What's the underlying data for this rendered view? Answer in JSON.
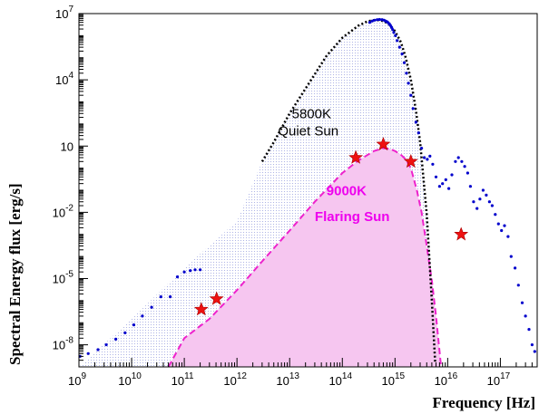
{
  "chart_data": {
    "type": "scatter",
    "title": "",
    "xlabel": "Frequency [Hz]",
    "ylabel": "Spectral Energy flux [erg/s]",
    "x_scale": "log",
    "y_scale": "log",
    "xlim": [
      1000000000.0,
      5e+17
    ],
    "ylim": [
      1e-09,
      10000000.0
    ],
    "grid": false,
    "legend": "none",
    "x_ticks": [
      {
        "base": "10",
        "exp": "9",
        "value": 1000000000.0
      },
      {
        "base": "10",
        "exp": "10",
        "value": 10000000000.0
      },
      {
        "base": "10",
        "exp": "11",
        "value": 100000000000.0
      },
      {
        "base": "10",
        "exp": "12",
        "value": 1000000000000.0
      },
      {
        "base": "10",
        "exp": "13",
        "value": 10000000000000.0
      },
      {
        "base": "10",
        "exp": "14",
        "value": 100000000000000.0
      },
      {
        "base": "10",
        "exp": "15",
        "value": 1000000000000000.0
      },
      {
        "base": "10",
        "exp": "16",
        "value": 1e+16
      },
      {
        "base": "10",
        "exp": "17",
        "value": 1e+17
      }
    ],
    "y_ticks": [
      {
        "base": "10",
        "exp": "-8",
        "value": 1e-08
      },
      {
        "base": "10",
        "exp": "-5",
        "value": 1e-05
      },
      {
        "base": "10",
        "exp": "-2",
        "value": 0.01
      },
      {
        "base": "10",
        "exp": "",
        "value": 10
      },
      {
        "base": "10",
        "exp": "4",
        "value": 10000.0
      },
      {
        "base": "10",
        "exp": "7",
        "value": 10000000.0
      }
    ],
    "annotations": [
      {
        "text": "5800K",
        "color": "#000000",
        "x": 11000000000000.0,
        "y": 180
      },
      {
        "text": "Quiet Sun",
        "color": "#000000",
        "x": 6000000000000.0,
        "y": 30
      },
      {
        "text": "9000K",
        "color": "#ee00ee",
        "x": 50000000000000.0,
        "y": 0.06
      },
      {
        "text": "Flaring Sun",
        "color": "#ee00ee",
        "x": 30000000000000.0,
        "y": 0.004
      }
    ],
    "series": [
      {
        "style": "dotted-line",
        "color": "#000000",
        "x": [
          3000000000000.0,
          5000000000000.0,
          10000000000000.0,
          20000000000000.0,
          50000000000000.0,
          100000000000000.0,
          200000000000000.0,
          300000000000000.0,
          400000000000000.0,
          500000000000000.0,
          600000000000000.0,
          700000000000000.0,
          800000000000000.0,
          1000000000000000.0,
          1300000000000000.0,
          1600000000000000.0,
          2000000000000000.0,
          2500000000000000.0,
          3000000000000000.0,
          4000000000000000.0,
          5000000000000000.0,
          5800000000000000.0
        ],
        "y": [
          2,
          15,
          300,
          4000,
          120000.0,
          800000.0,
          2800000.0,
          4500000.0,
          5000000.0,
          5000000.0,
          4600000.0,
          3800000.0,
          3000000.0,
          1600000.0,
          500000.0,
          100000.0,
          10000.0,
          400.0,
          15,
          0.008,
          1e-06,
          1.5e-09
        ]
      },
      {
        "style": "dashed-filled",
        "color": "#ee22cc",
        "fill": "#f6c6f0",
        "x": [
          50000000000.0,
          100000000000.0,
          300000000000.0,
          1000000000000.0,
          3000000000000.0,
          10000000000000.0,
          30000000000000.0,
          100000000000000.0,
          200000000000000.0,
          400000000000000.0,
          600000000000000.0,
          800000000000000.0,
          1000000000000000.0,
          1300000000000000.0,
          1600000000000000.0,
          2000000000000000.0,
          2600000000000000.0,
          3200000000000000.0,
          4000000000000000.0,
          5000000000000000.0,
          6000000000000000.0,
          7000000000000000.0,
          7500000000000000.0
        ],
        "y": [
          1e-09,
          2e-08,
          1.5e-07,
          3e-06,
          6e-05,
          0.0015,
          0.03,
          0.6,
          2.2,
          6,
          8,
          7.5,
          6,
          4,
          2.5,
          1,
          0.1,
          0.01,
          0.0003,
          8e-06,
          2e-07,
          5e-09,
          1e-09
        ]
      },
      {
        "style": "dots",
        "color": "#0000cc",
        "x": [
          1050000000.0,
          1500000000.0,
          2300000000.0,
          3300000000.0,
          5000000000.0,
          7500000000.0,
          11000000000.0,
          16000000000.0,
          24000000000.0,
          36000000000.0,
          54000000000.0,
          74000000000.0,
          100000000000.0,
          130000000000.0,
          160000000000.0,
          200000000000.0,
          330000000000000.0,
          370000000000000.0,
          410000000000000.0,
          460000000000000.0,
          510000000000000.0,
          570000000000000.0,
          620000000000000.0,
          660000000000000.0,
          700000000000000.0,
          740000000000000.0,
          780000000000000.0,
          820000000000000.0,
          860000000000000.0,
          900000000000000.0,
          950000000000000.0,
          1020000000000000.0,
          1100000000000000.0,
          1220000000000000.0,
          1360000000000000.0,
          1500000000000000.0,
          1650000000000000.0,
          1800000000000000.0,
          2000000000000000.0,
          2200000000000000.0,
          2500000000000000.0,
          2800000000000000.0,
          3200000000000000.0,
          3600000000000000.0,
          4100000000000000.0,
          4600000000000000.0,
          5200000000000000.0,
          6000000000000000.0,
          7000000000000000.0,
          8000000000000000.0,
          9200000000000000.0,
          1.05e+16,
          1.2e+16,
          1.4e+16,
          1.6e+16,
          1.85e+16,
          2.1e+16,
          2.4e+16,
          2.7e+16,
          3.1e+16,
          3.6e+16,
          4.1e+16,
          4.7e+16,
          5.4e+16,
          6.2e+16,
          7e+16,
          8e+16,
          9.2e+16,
          1.05e+17,
          1.2e+17,
          1.4e+17,
          1.6e+17,
          1.9e+17,
          2.2e+17,
          2.6e+17,
          3e+17,
          3.5e+17,
          4e+17,
          4.5e+17
        ],
        "y": [
          3e-09,
          4e-09,
          6e-09,
          1e-08,
          1.8e-08,
          3.5e-08,
          8e-08,
          2e-07,
          5e-07,
          1.5e-06,
          1.5e-06,
          1.2e-05,
          2e-05,
          2.3e-05,
          2.5e-05,
          2.5e-05,
          4000000.0,
          4600000.0,
          5000000.0,
          5300000.0,
          5400000.0,
          5300000.0,
          5000000.0,
          4600000.0,
          4300000.0,
          3900000.0,
          3400000.0,
          2900000.0,
          2400000.0,
          1900000.0,
          1400000.0,
          1000000.0,
          600000.0,
          300000.0,
          150000.0,
          60000.0,
          20000.0,
          7000.0,
          2000.0,
          500,
          120,
          40,
          8,
          3,
          2.5,
          3.5,
          1.5,
          0.4,
          0.15,
          0.2,
          0.3,
          0.12,
          0.5,
          2,
          3,
          2,
          1.2,
          0.6,
          0.15,
          0.03,
          0.015,
          0.04,
          0.1,
          0.06,
          0.03,
          0.02,
          0.008,
          0.003,
          0.0015,
          0.0025,
          0.0008,
          0.0001,
          3e-05,
          5e-06,
          8e-07,
          2e-07,
          5e-08,
          1e-08,
          5e-09
        ]
      },
      {
        "style": "stars",
        "color": "#ee1111",
        "x": [
          210000000000.0,
          410000000000.0,
          180000000000000.0,
          600000000000000.0,
          2000000000000000.0,
          1.8e+16
        ],
        "y": [
          4e-07,
          1.2e-06,
          3,
          12,
          2,
          0.001
        ]
      }
    ]
  }
}
